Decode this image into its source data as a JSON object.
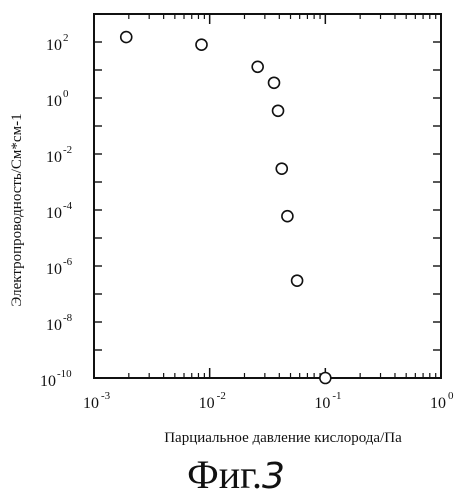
{
  "chart_data": {
    "type": "scatter",
    "title": "",
    "xlabel": "Парциальное давление кислорода/Па",
    "ylabel": "Электропроводность/См*см-1",
    "x_scale": "log",
    "y_scale": "log",
    "xlim": [
      0.001,
      1
    ],
    "ylim": [
      1e-10,
      1000
    ],
    "grid": false,
    "marker": "open-circle",
    "x_ticks": [
      {
        "base": "10",
        "exp": "-3",
        "value": 0.001
      },
      {
        "base": "10",
        "exp": "-2",
        "value": 0.01
      },
      {
        "base": "10",
        "exp": "-1",
        "value": 0.1
      },
      {
        "base": "10",
        "exp": "0",
        "value": 1
      }
    ],
    "y_ticks": [
      {
        "base": "10",
        "exp": "2",
        "value": 100
      },
      {
        "base": "10",
        "exp": "0",
        "value": 1
      },
      {
        "base": "10",
        "exp": "-2",
        "value": 0.01
      },
      {
        "base": "10",
        "exp": "-4",
        "value": 0.0001
      },
      {
        "base": "10",
        "exp": "-6",
        "value": 1e-06
      },
      {
        "base": "10",
        "exp": "-8",
        "value": 1e-08
      },
      {
        "base": "10",
        "exp": "-10",
        "value": 1e-10
      }
    ],
    "points": [
      {
        "x": 0.0019,
        "y": 150
      },
      {
        "x": 0.0085,
        "y": 80
      },
      {
        "x": 0.026,
        "y": 13
      },
      {
        "x": 0.036,
        "y": 3.5
      },
      {
        "x": 0.039,
        "y": 0.35
      },
      {
        "x": 0.042,
        "y": 0.003
      },
      {
        "x": 0.047,
        "y": 6e-05
      },
      {
        "x": 0.057,
        "y": 3e-07
      },
      {
        "x": 0.1,
        "y": 1e-10
      }
    ]
  },
  "caption": {
    "prefix": "Фиг.",
    "number": "3"
  }
}
